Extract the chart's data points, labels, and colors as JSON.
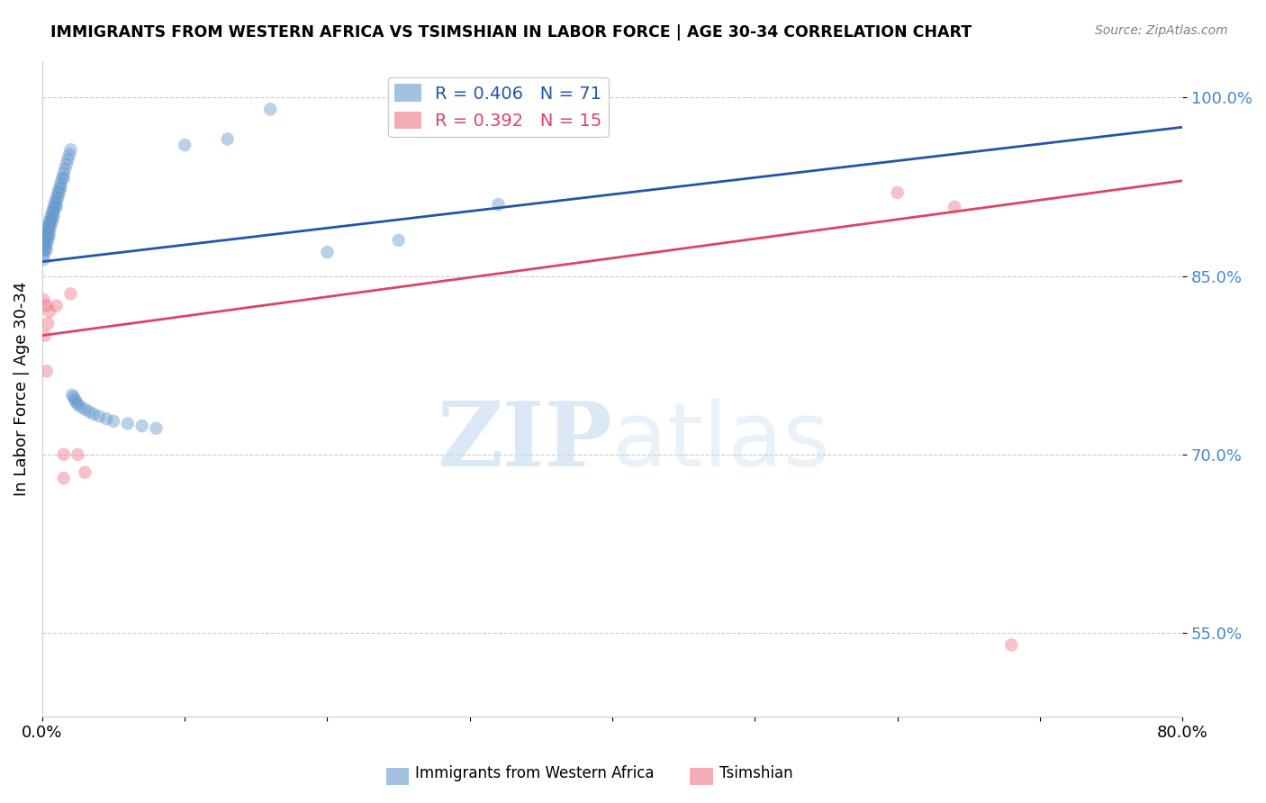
{
  "title": "IMMIGRANTS FROM WESTERN AFRICA VS TSIMSHIAN IN LABOR FORCE | AGE 30-34 CORRELATION CHART",
  "source": "Source: ZipAtlas.com",
  "ylabel": "In Labor Force | Age 30-34",
  "xlim": [
    0.0,
    0.8
  ],
  "ylim": [
    0.48,
    1.03
  ],
  "xticks": [
    0.0,
    0.1,
    0.2,
    0.3,
    0.4,
    0.5,
    0.6,
    0.7,
    0.8
  ],
  "yticks": [
    0.55,
    0.7,
    0.85,
    1.0
  ],
  "ytick_labels": [
    "55.0%",
    "70.0%",
    "85.0%",
    "100.0%"
  ],
  "xtick_labels": [
    "0.0%",
    "",
    "",
    "",
    "",
    "",
    "",
    "",
    "80.0%"
  ],
  "blue_R": 0.406,
  "blue_N": 71,
  "pink_R": 0.392,
  "pink_N": 15,
  "blue_color": "#6699cc",
  "pink_color": "#ee7788",
  "blue_line_color": "#2255aa",
  "pink_line_color": "#dd4466",
  "legend_label_blue": "Immigrants from Western Africa",
  "legend_label_pink": "Tsimshian",
  "blue_scatter_x": [
    0.001,
    0.001,
    0.001,
    0.001,
    0.001,
    0.002,
    0.002,
    0.002,
    0.002,
    0.003,
    0.003,
    0.003,
    0.003,
    0.003,
    0.004,
    0.004,
    0.004,
    0.004,
    0.005,
    0.005,
    0.005,
    0.005,
    0.006,
    0.006,
    0.006,
    0.007,
    0.007,
    0.007,
    0.008,
    0.008,
    0.008,
    0.009,
    0.009,
    0.01,
    0.01,
    0.01,
    0.011,
    0.011,
    0.012,
    0.012,
    0.013,
    0.013,
    0.014,
    0.015,
    0.015,
    0.016,
    0.017,
    0.018,
    0.019,
    0.02,
    0.021,
    0.022,
    0.023,
    0.024,
    0.025,
    0.027,
    0.03,
    0.033,
    0.036,
    0.04,
    0.045,
    0.05,
    0.06,
    0.07,
    0.08,
    0.1,
    0.13,
    0.16,
    0.2,
    0.25,
    0.32
  ],
  "blue_scatter_y": [
    0.88,
    0.876,
    0.872,
    0.868,
    0.864,
    0.884,
    0.88,
    0.876,
    0.872,
    0.888,
    0.884,
    0.88,
    0.876,
    0.872,
    0.892,
    0.888,
    0.884,
    0.88,
    0.896,
    0.892,
    0.888,
    0.884,
    0.9,
    0.896,
    0.892,
    0.904,
    0.9,
    0.896,
    0.908,
    0.904,
    0.9,
    0.912,
    0.908,
    0.916,
    0.912,
    0.908,
    0.92,
    0.916,
    0.924,
    0.92,
    0.928,
    0.924,
    0.932,
    0.936,
    0.932,
    0.94,
    0.944,
    0.948,
    0.952,
    0.956,
    0.75,
    0.748,
    0.746,
    0.744,
    0.742,
    0.74,
    0.738,
    0.736,
    0.734,
    0.732,
    0.73,
    0.728,
    0.726,
    0.724,
    0.722,
    0.96,
    0.965,
    0.99,
    0.87,
    0.88,
    0.91
  ],
  "pink_scatter_x": [
    0.001,
    0.002,
    0.003,
    0.003,
    0.004,
    0.005,
    0.01,
    0.015,
    0.015,
    0.02,
    0.025,
    0.03,
    0.6,
    0.64,
    0.68
  ],
  "pink_scatter_y": [
    0.83,
    0.8,
    0.825,
    0.77,
    0.81,
    0.82,
    0.825,
    0.7,
    0.68,
    0.835,
    0.7,
    0.685,
    0.92,
    0.908,
    0.54
  ],
  "blue_line_x0": 0.0,
  "blue_line_x1": 0.8,
  "blue_line_y0": 0.862,
  "blue_line_y1": 0.975,
  "pink_line_x0": 0.0,
  "pink_line_x1": 0.8,
  "pink_line_y0": 0.8,
  "pink_line_y1": 0.93
}
